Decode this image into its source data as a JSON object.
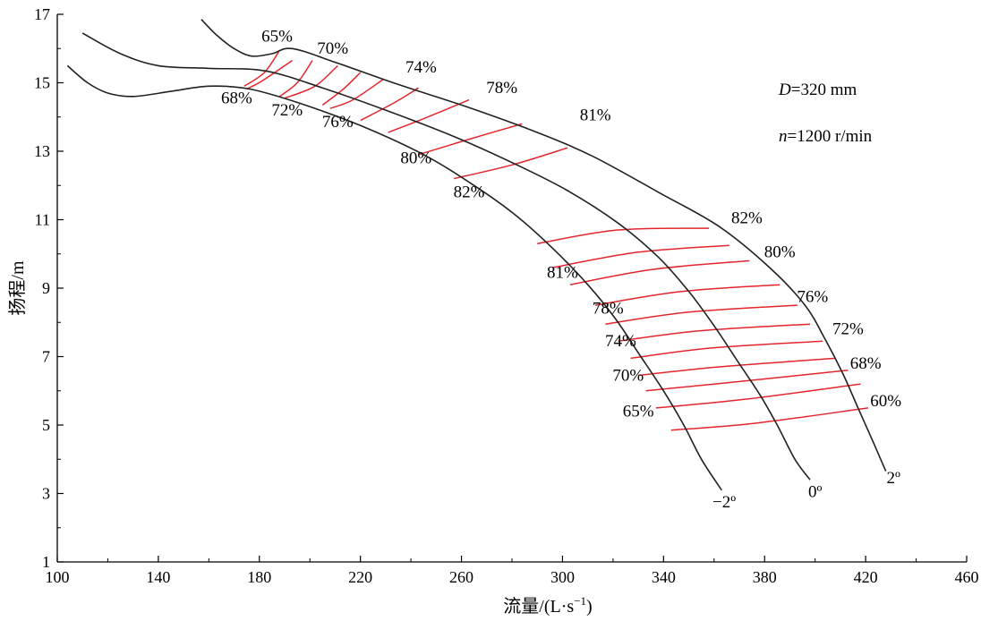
{
  "chart_data": {
    "type": "line",
    "title": "",
    "xlabel": "流量/(L·s⁻¹)",
    "ylabel": "扬程/m",
    "xlim": [
      100,
      460
    ],
    "ylim": [
      1,
      17
    ],
    "x_ticks": [
      100,
      140,
      180,
      220,
      260,
      300,
      340,
      380,
      420,
      460
    ],
    "y_ticks": [
      1,
      3,
      5,
      7,
      9,
      11,
      13,
      15,
      17
    ],
    "parameters": [
      "D=320 mm",
      "n=1200 r/min"
    ],
    "series": [
      {
        "name": "−2º",
        "color": "#222222",
        "points": [
          [
            104,
            15.5
          ],
          [
            112,
            15.0
          ],
          [
            120,
            14.7
          ],
          [
            130,
            14.6
          ],
          [
            145,
            14.75
          ],
          [
            160,
            14.9
          ],
          [
            176,
            14.82
          ],
          [
            196,
            14.4
          ],
          [
            220,
            13.75
          ],
          [
            245,
            12.9
          ],
          [
            265,
            12.0
          ],
          [
            282,
            11.1
          ],
          [
            297,
            10.1
          ],
          [
            310,
            9.1
          ],
          [
            321,
            8.1
          ],
          [
            331,
            7.0
          ],
          [
            340,
            6.0
          ],
          [
            348,
            5.0
          ],
          [
            355,
            4.0
          ],
          [
            363,
            3.1
          ]
        ]
      },
      {
        "name": "0º",
        "color": "#222222",
        "points": [
          [
            110,
            16.45
          ],
          [
            125,
            15.85
          ],
          [
            140,
            15.5
          ],
          [
            160,
            15.42
          ],
          [
            182,
            15.35
          ],
          [
            205,
            14.85
          ],
          [
            230,
            14.2
          ],
          [
            258,
            13.4
          ],
          [
            282,
            12.6
          ],
          [
            302,
            11.85
          ],
          [
            322,
            10.9
          ],
          [
            338,
            9.9
          ],
          [
            350,
            8.9
          ],
          [
            360,
            7.9
          ],
          [
            369,
            6.9
          ],
          [
            378,
            5.9
          ],
          [
            385,
            5.0
          ],
          [
            392,
            4.0
          ],
          [
            398,
            3.4
          ]
        ]
      },
      {
        "name": "2º",
        "color": "#222222",
        "points": [
          [
            157,
            16.85
          ],
          [
            163,
            16.4
          ],
          [
            170,
            16.0
          ],
          [
            177,
            15.78
          ],
          [
            185,
            15.85
          ],
          [
            193,
            16.0
          ],
          [
            210,
            15.6
          ],
          [
            235,
            14.95
          ],
          [
            262,
            14.3
          ],
          [
            290,
            13.55
          ],
          [
            312,
            12.85
          ],
          [
            338,
            11.8
          ],
          [
            362,
            10.8
          ],
          [
            382,
            9.6
          ],
          [
            396,
            8.5
          ],
          [
            404,
            7.5
          ],
          [
            411,
            6.5
          ],
          [
            417,
            5.5
          ],
          [
            423,
            4.5
          ],
          [
            428,
            3.65
          ]
        ]
      }
    ],
    "efficiency_curves": [
      {
        "label": "65%",
        "points": [
          [
            188,
            15.95
          ],
          [
            182,
            15.3
          ],
          [
            174,
            14.9
          ]
        ]
      },
      {
        "label": "68%",
        "points": [
          [
            175,
            14.82
          ],
          [
            181,
            15.05
          ],
          [
            193,
            15.65
          ]
        ]
      },
      {
        "label": "70%",
        "points": [
          [
            201,
            15.65
          ],
          [
            195,
            15.0
          ],
          [
            188,
            14.6
          ]
        ]
      },
      {
        "label": "72%",
        "points": [
          [
            190,
            14.55
          ],
          [
            202,
            14.9
          ],
          [
            211,
            15.5
          ]
        ]
      },
      {
        "label": "74%",
        "points": [
          [
            220,
            15.3
          ],
          [
            213,
            14.8
          ],
          [
            205,
            14.35
          ]
        ]
      },
      {
        "label": "76%",
        "points": [
          [
            208,
            14.25
          ],
          [
            217,
            14.5
          ],
          [
            229,
            15.1
          ]
        ]
      },
      {
        "label": "78%",
        "points": [
          [
            243,
            14.85
          ],
          [
            233,
            14.4
          ],
          [
            220,
            13.9
          ]
        ]
      },
      {
        "label": "80%",
        "points": [
          [
            231,
            13.55
          ],
          [
            245,
            13.95
          ],
          [
            263,
            14.5
          ]
        ]
      },
      {
        "label": "81%",
        "points": [
          [
            284,
            13.8
          ],
          [
            263,
            13.35
          ],
          [
            243,
            12.9
          ]
        ]
      },
      {
        "label": "82%",
        "points": [
          [
            257,
            12.2
          ],
          [
            280,
            12.6
          ],
          [
            302,
            13.1
          ]
        ]
      },
      {
        "label": "82%",
        "points": [
          [
            290,
            10.3
          ],
          [
            322,
            10.7
          ],
          [
            358,
            10.75
          ]
        ]
      },
      {
        "label": "81%",
        "points": [
          [
            296,
            9.6
          ],
          [
            330,
            10.05
          ],
          [
            366,
            10.25
          ]
        ]
      },
      {
        "label": "80%",
        "points": [
          [
            303,
            9.1
          ],
          [
            336,
            9.55
          ],
          [
            374,
            9.8
          ]
        ]
      },
      {
        "label": "78%",
        "points": [
          [
            313,
            8.5
          ],
          [
            347,
            8.9
          ],
          [
            386,
            9.1
          ]
        ]
      },
      {
        "label": "76%",
        "points": [
          [
            317,
            7.95
          ],
          [
            350,
            8.3
          ],
          [
            393,
            8.5
          ]
        ]
      },
      {
        "label": "74%",
        "points": [
          [
            322,
            7.45
          ],
          [
            354,
            7.75
          ],
          [
            398,
            7.95
          ]
        ]
      },
      {
        "label": "72%",
        "points": [
          [
            327,
            6.95
          ],
          [
            359,
            7.25
          ],
          [
            403,
            7.45
          ]
        ]
      },
      {
        "label": "70%",
        "points": [
          [
            330,
            6.45
          ],
          [
            362,
            6.7
          ],
          [
            408,
            6.95
          ]
        ]
      },
      {
        "label": "68%",
        "points": [
          [
            333,
            6.0
          ],
          [
            367,
            6.25
          ],
          [
            413,
            6.6
          ]
        ]
      },
      {
        "label": "65%",
        "points": [
          [
            337,
            5.5
          ],
          [
            372,
            5.75
          ],
          [
            418,
            6.2
          ]
        ]
      },
      {
        "label": "60%",
        "points": [
          [
            343,
            4.85
          ],
          [
            376,
            5.05
          ],
          [
            421,
            5.5
          ]
        ]
      }
    ],
    "annotations": [
      {
        "text": "65%",
        "x": 187,
        "y": 16.2
      },
      {
        "text": "70%",
        "x": 209,
        "y": 15.85
      },
      {
        "text": "74%",
        "x": 244,
        "y": 15.3
      },
      {
        "text": "78%",
        "x": 276,
        "y": 14.7
      },
      {
        "text": "81%",
        "x": 313,
        "y": 13.9
      },
      {
        "text": "68%",
        "x": 171,
        "y": 14.4
      },
      {
        "text": "72%",
        "x": 191,
        "y": 14.05
      },
      {
        "text": "76%",
        "x": 211,
        "y": 13.7
      },
      {
        "text": "80%",
        "x": 242,
        "y": 12.65
      },
      {
        "text": "82%",
        "x": 263,
        "y": 11.65
      },
      {
        "text": "82%",
        "x": 373,
        "y": 10.9
      },
      {
        "text": "80%",
        "x": 386,
        "y": 9.9
      },
      {
        "text": "76%",
        "x": 399,
        "y": 8.6
      },
      {
        "text": "72%",
        "x": 413,
        "y": 7.65
      },
      {
        "text": "68%",
        "x": 420,
        "y": 6.65
      },
      {
        "text": "60%",
        "x": 428,
        "y": 5.55
      },
      {
        "text": "81%",
        "x": 300,
        "y": 9.3
      },
      {
        "text": "78%",
        "x": 318,
        "y": 8.25
      },
      {
        "text": "74%",
        "x": 323,
        "y": 7.3
      },
      {
        "text": "70%",
        "x": 326,
        "y": 6.3
      },
      {
        "text": "65%",
        "x": 330,
        "y": 5.25
      },
      {
        "text": "−2º",
        "x": 364,
        "y": 2.6
      },
      {
        "text": "0º",
        "x": 400,
        "y": 2.9
      },
      {
        "text": "2º",
        "x": 431,
        "y": 3.3
      }
    ],
    "colors": {
      "axis": "#000000",
      "curve": "#222222",
      "efficiency": "#e3262d"
    }
  }
}
